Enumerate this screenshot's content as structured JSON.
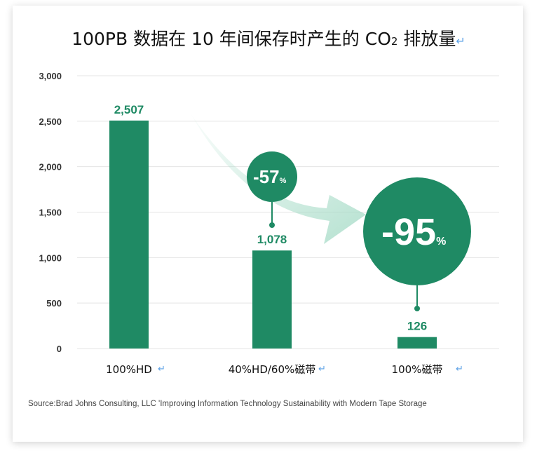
{
  "chart_data": {
    "type": "bar",
    "title_main": "100PB 数据在 10 年间保存时产生的 CO",
    "title_sub": "2",
    "title_tail": " 排放量",
    "categories": [
      "100%HD",
      "40%HD/60%磁带",
      "100%磁带"
    ],
    "values": [
      2507,
      1078,
      126
    ],
    "value_labels": [
      "2,507",
      "1,078",
      "126"
    ],
    "ylim": [
      0,
      3000
    ],
    "yticks": [
      0,
      500,
      1000,
      1500,
      2000,
      2500,
      3000
    ],
    "ytick_labels": [
      "0",
      "500",
      "1,000",
      "1,500",
      "2,000",
      "2,500",
      "3,000"
    ],
    "grid": true,
    "bar_color": "#1f8a64",
    "annotations": [
      {
        "value": "-57",
        "unit": "%",
        "category_index": 1
      },
      {
        "value": "-95",
        "unit": "%",
        "category_index": 2
      }
    ],
    "arrow_color": "#a8dcc8"
  },
  "source": "Source:Brad Johns Consulting, LLC 'Improving Information Technology Sustainability with Modern Tape Storage"
}
